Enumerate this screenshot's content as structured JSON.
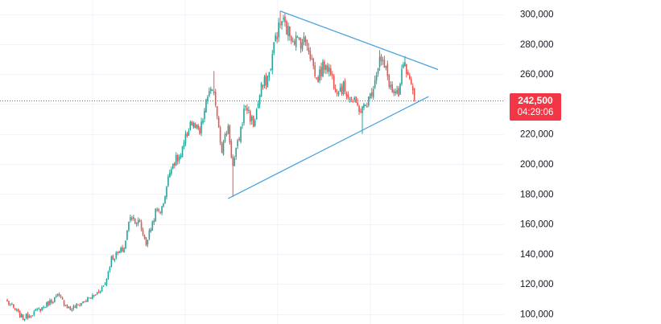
{
  "colors": {
    "up": "#26a69a",
    "down": "#ef5350",
    "trendline": "#4aa3df",
    "grid": "#f0f3fa",
    "last_price_line": "#f23645",
    "price_tag_bg": "#f23645",
    "axis_text": "#131722",
    "background": "#ffffff"
  },
  "price_tag": {
    "price": "242,500",
    "countdown": "04:29:06"
  },
  "chart_data": {
    "type": "candlestick",
    "title": "",
    "xlabel": "",
    "ylabel": "",
    "y_ticks": [
      "100,000",
      "120,000",
      "140,000",
      "160,000",
      "180,000",
      "200,000",
      "220,000",
      "240,000",
      "260,000",
      "280,000",
      "300,000"
    ],
    "ylim": [
      94500,
      304500
    ],
    "grid": true,
    "last_price": 242500,
    "anchors": [
      {
        "i": 0,
        "p": 108000
      },
      {
        "i": 10,
        "p": 97000
      },
      {
        "i": 22,
        "p": 104000
      },
      {
        "i": 32,
        "p": 112000
      },
      {
        "i": 40,
        "p": 103000
      },
      {
        "i": 48,
        "p": 108000
      },
      {
        "i": 56,
        "p": 113000
      },
      {
        "i": 62,
        "p": 120000
      },
      {
        "i": 66,
        "p": 137000
      },
      {
        "i": 70,
        "p": 140000
      },
      {
        "i": 74,
        "p": 144000
      },
      {
        "i": 78,
        "p": 166000
      },
      {
        "i": 84,
        "p": 160000
      },
      {
        "i": 88,
        "p": 147000
      },
      {
        "i": 94,
        "p": 168000
      },
      {
        "i": 98,
        "p": 170000
      },
      {
        "i": 104,
        "p": 200000
      },
      {
        "i": 110,
        "p": 205000
      },
      {
        "i": 116,
        "p": 228000
      },
      {
        "i": 122,
        "p": 220000
      },
      {
        "i": 128,
        "p": 250000
      },
      {
        "i": 132,
        "p": 242000
      },
      {
        "i": 136,
        "p": 210000
      },
      {
        "i": 140,
        "p": 225000
      },
      {
        "i": 143,
        "p": 198000
      },
      {
        "i": 147,
        "p": 218000
      },
      {
        "i": 151,
        "p": 240000
      },
      {
        "i": 156,
        "p": 226000
      },
      {
        "i": 161,
        "p": 250000
      },
      {
        "i": 166,
        "p": 260000
      },
      {
        "i": 170,
        "p": 285000
      },
      {
        "i": 174,
        "p": 296000
      },
      {
        "i": 178,
        "p": 288000
      },
      {
        "i": 184,
        "p": 282000
      },
      {
        "i": 190,
        "p": 282000
      },
      {
        "i": 196,
        "p": 256000
      },
      {
        "i": 202,
        "p": 268000
      },
      {
        "i": 208,
        "p": 252000
      },
      {
        "i": 214,
        "p": 250000
      },
      {
        "i": 220,
        "p": 240000
      },
      {
        "i": 225,
        "p": 236000
      },
      {
        "i": 230,
        "p": 245000
      },
      {
        "i": 236,
        "p": 270000
      },
      {
        "i": 240,
        "p": 262000
      },
      {
        "i": 244,
        "p": 248000
      },
      {
        "i": 248,
        "p": 244000
      },
      {
        "i": 251,
        "p": 268000
      },
      {
        "i": 254,
        "p": 256000
      },
      {
        "i": 258,
        "p": 242500
      }
    ],
    "spikes": [
      {
        "i": 143,
        "low": 178000
      },
      {
        "i": 225,
        "low": 220000
      },
      {
        "i": 173,
        "high": 302000
      },
      {
        "i": 236,
        "high": 276000
      },
      {
        "i": 252,
        "high": 272000
      },
      {
        "i": 131,
        "high": 262000
      }
    ],
    "trendlines": [
      {
        "name": "upper",
        "from": {
          "i": 173,
          "p": 302000
        },
        "to": {
          "i": 273,
          "p": 263000
        }
      },
      {
        "name": "lower",
        "from": {
          "i": 140,
          "p": 177000
        },
        "to": {
          "i": 267,
          "p": 245000
        }
      }
    ]
  }
}
